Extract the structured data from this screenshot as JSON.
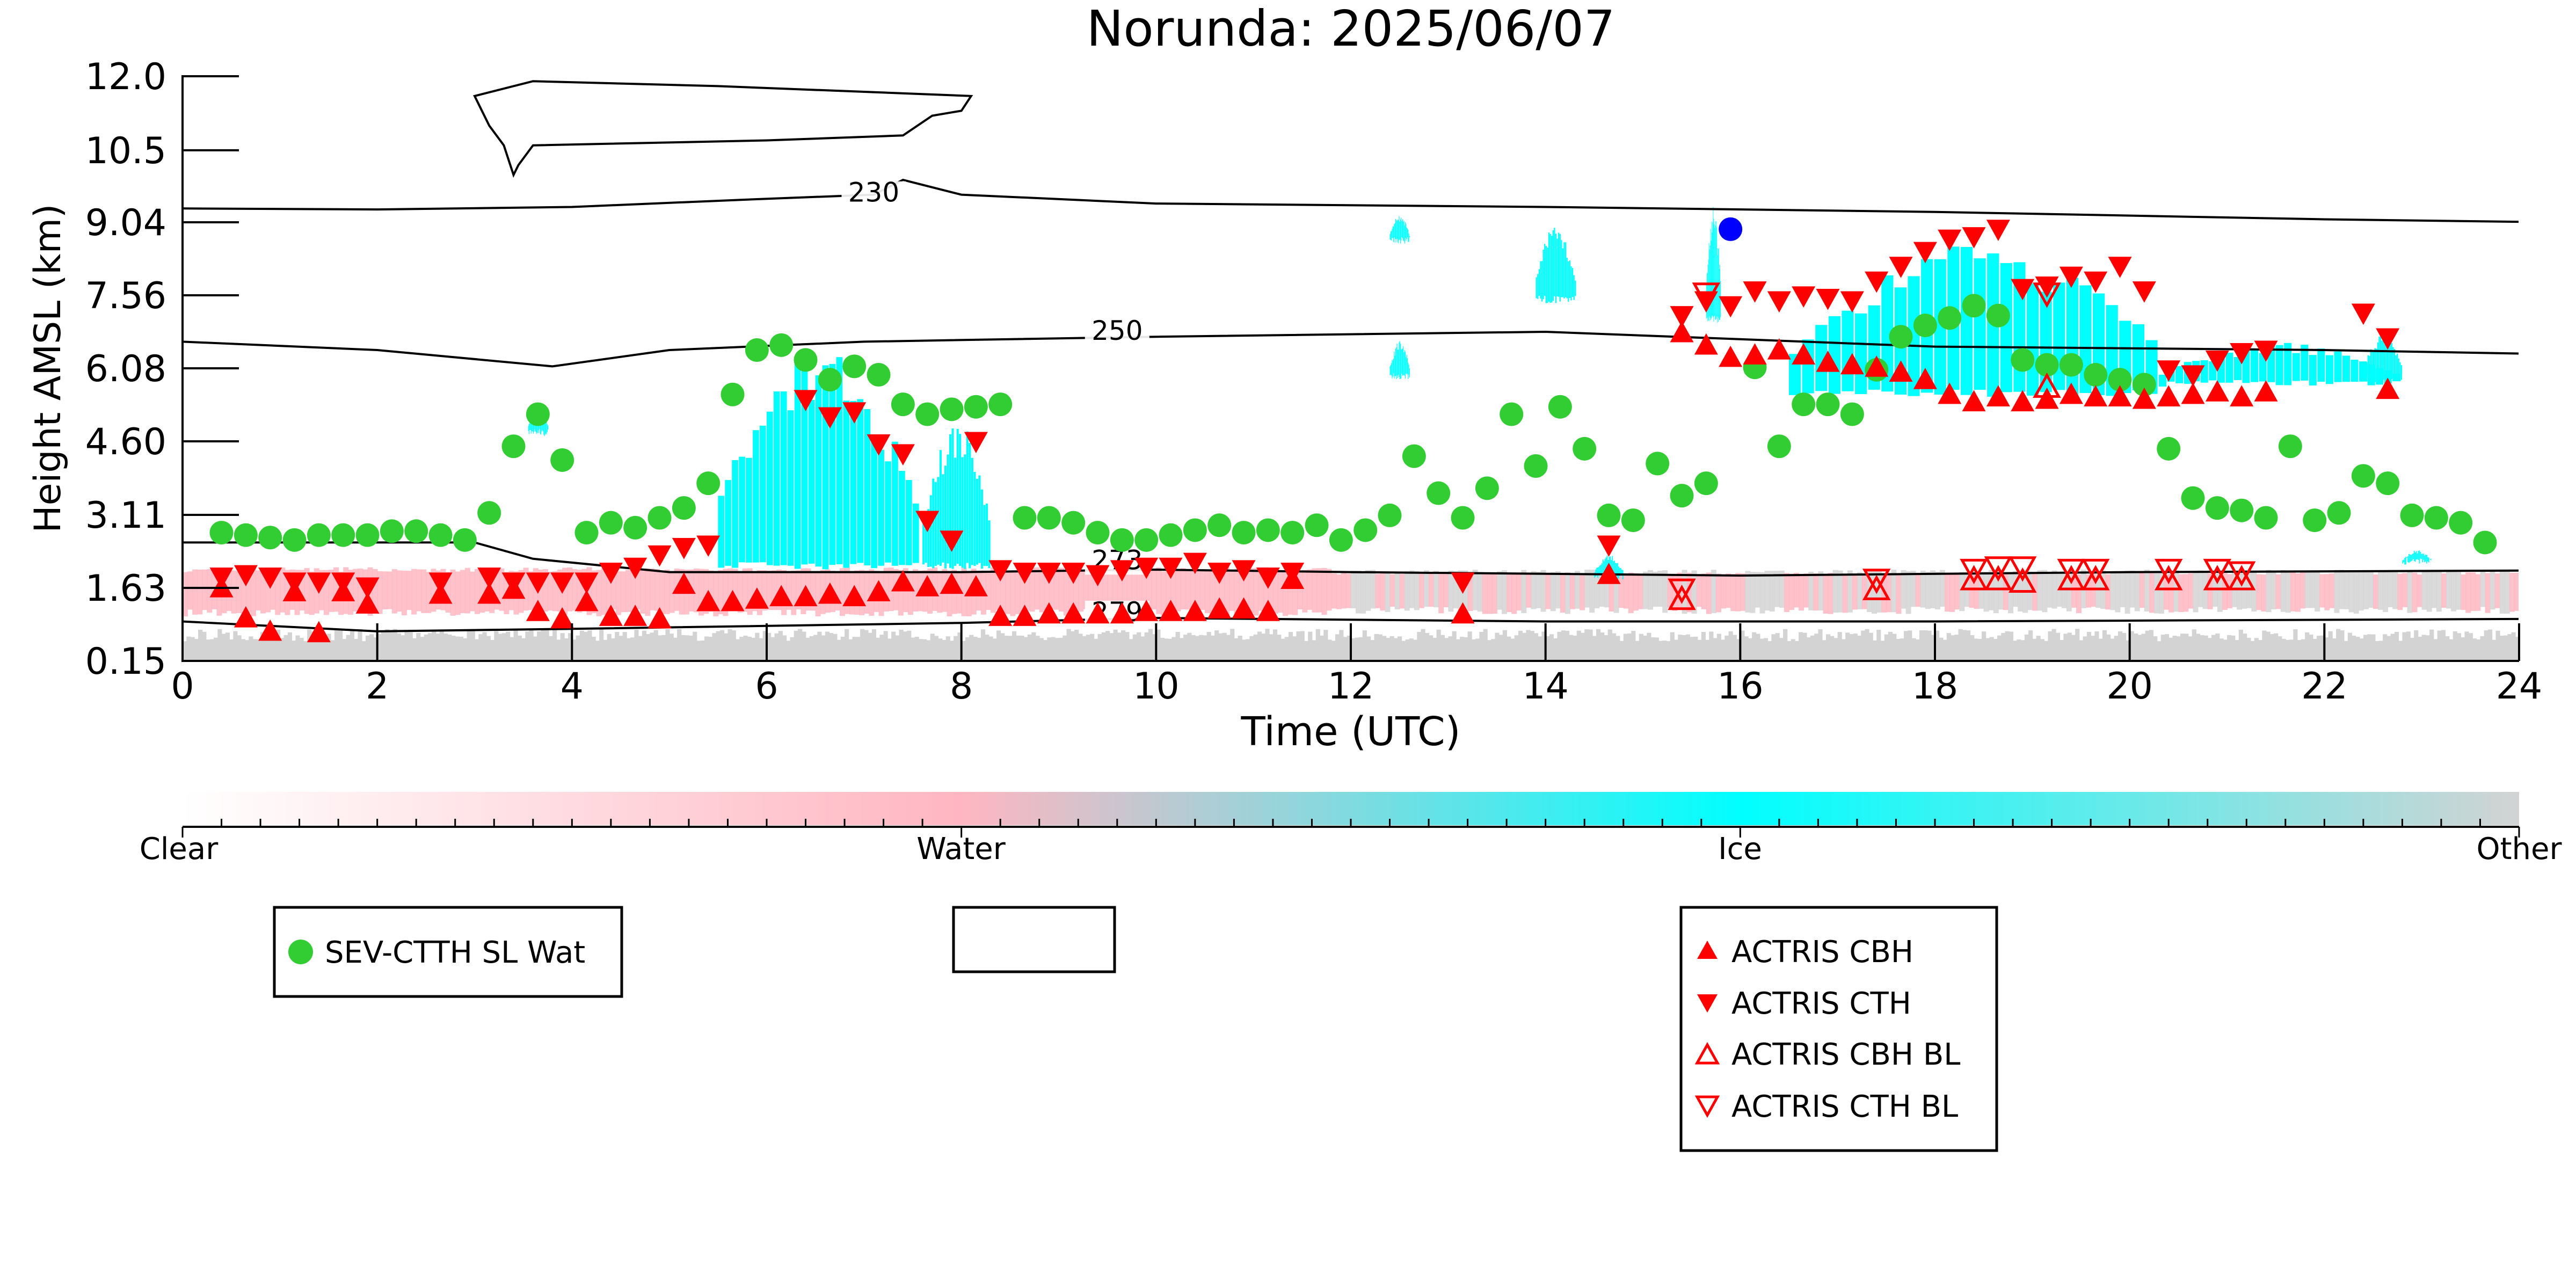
{
  "chart_data": {
    "type": "scatter",
    "title": "Norunda: 2025/06/07",
    "xlabel": "Time (UTC)",
    "ylabel": "Height AMSL (km)",
    "xlim": [
      0,
      24
    ],
    "ylim": [
      0.15,
      12.0
    ],
    "x_ticks": [
      0,
      2,
      4,
      6,
      8,
      10,
      12,
      14,
      16,
      18,
      20,
      22,
      24
    ],
    "y_ticks": [
      "0.15",
      "1.63",
      "3.11",
      "4.60",
      "6.08",
      "7.56",
      "9.04",
      "10.5",
      "12.0"
    ],
    "y_tick_values": [
      0.15,
      1.63,
      3.11,
      4.6,
      6.08,
      7.56,
      9.04,
      10.5,
      12.0
    ],
    "grid": false,
    "colorbar": {
      "labels": [
        "Clear",
        "Water",
        "Ice",
        "Other"
      ],
      "stops": [
        "#ffffff",
        "#ffb6c1",
        "#00ffff",
        "#d3d3d3"
      ]
    },
    "colors": {
      "water": "#ffb6c1",
      "ice": "#00ffff",
      "other": "#d3d3d3",
      "sev": "#32cd32",
      "actris": "#ff0000",
      "extra_point": "#0000ff"
    },
    "isotherms": [
      {
        "label": "230",
        "label_at": [
          7.1,
          9.5
        ],
        "points": [
          [
            0,
            9.32
          ],
          [
            2,
            9.3
          ],
          [
            4,
            9.35
          ],
          [
            5.8,
            9.5
          ],
          [
            7.1,
            9.6
          ],
          [
            7.4,
            9.9
          ],
          [
            8.0,
            9.6
          ],
          [
            10,
            9.42
          ],
          [
            14,
            9.35
          ],
          [
            18,
            9.25
          ],
          [
            22,
            9.1
          ],
          [
            24,
            9.05
          ]
        ]
      },
      {
        "label": "250",
        "label_at": [
          9.6,
          6.7
        ],
        "points": [
          [
            0,
            6.62
          ],
          [
            2,
            6.45
          ],
          [
            3.8,
            6.12
          ],
          [
            5,
            6.45
          ],
          [
            7,
            6.62
          ],
          [
            10,
            6.72
          ],
          [
            14,
            6.82
          ],
          [
            18,
            6.52
          ],
          [
            22,
            6.45
          ],
          [
            24,
            6.38
          ]
        ]
      },
      {
        "label": "273",
        "label_at": [
          9.6,
          2.05
        ],
        "points": [
          [
            0,
            2.55
          ],
          [
            3,
            2.55
          ],
          [
            3.6,
            2.22
          ],
          [
            5,
            1.95
          ],
          [
            8,
            1.95
          ],
          [
            10,
            2.0
          ],
          [
            12,
            1.95
          ],
          [
            16,
            1.88
          ],
          [
            20,
            1.95
          ],
          [
            24,
            1.98
          ]
        ]
      },
      {
        "label": "279",
        "label_at": [
          9.6,
          1.0
        ],
        "points": [
          [
            0,
            0.95
          ],
          [
            2,
            0.75
          ],
          [
            4,
            0.8
          ],
          [
            8,
            0.92
          ],
          [
            10,
            1.02
          ],
          [
            14,
            0.95
          ],
          [
            18,
            0.95
          ],
          [
            24,
            1.0
          ]
        ]
      }
    ],
    "contour_230_closed": [
      [
        3.0,
        11.6
      ],
      [
        3.6,
        11.9
      ],
      [
        5.5,
        11.8
      ],
      [
        8.1,
        11.6
      ],
      [
        8.0,
        11.3
      ],
      [
        7.7,
        11.2
      ],
      [
        7.4,
        10.8
      ],
      [
        6.0,
        10.7
      ],
      [
        3.6,
        10.6
      ],
      [
        3.45,
        10.2
      ],
      [
        3.4,
        10.0
      ],
      [
        3.3,
        10.6
      ],
      [
        3.15,
        11.0
      ],
      [
        3.0,
        11.6
      ]
    ],
    "series": [
      {
        "name": "SEV-CTTH SL Wat",
        "marker": "circle",
        "x": [
          0.4,
          0.65,
          0.9,
          1.15,
          1.4,
          1.65,
          1.9,
          2.15,
          2.4,
          2.65,
          2.9,
          3.15,
          3.4,
          3.65,
          3.9,
          4.15,
          4.4,
          4.65,
          4.9,
          5.15,
          5.4,
          5.65,
          5.9,
          6.15,
          6.4,
          6.65,
          6.9,
          7.15,
          7.4,
          7.65,
          7.9,
          8.15,
          8.4,
          8.65,
          8.9,
          9.15,
          9.4,
          9.65,
          9.9,
          10.15,
          10.4,
          10.65,
          10.9,
          11.15,
          11.4,
          11.65,
          11.9,
          12.15,
          12.4,
          12.65,
          12.9,
          13.15,
          13.4,
          13.65,
          13.9,
          14.15,
          14.4,
          14.65,
          14.9,
          15.15,
          15.4,
          15.65,
          16.15,
          16.4,
          16.65,
          16.9,
          17.15,
          17.4,
          17.65,
          17.9,
          18.15,
          18.4,
          18.65,
          18.9,
          19.15,
          19.4,
          19.65,
          19.9,
          20.15,
          20.4,
          20.65,
          20.9,
          21.15,
          21.4,
          21.65,
          21.9,
          22.15,
          22.4,
          22.65,
          22.9,
          23.15,
          23.4,
          23.65
        ],
        "values": [
          2.75,
          2.7,
          2.65,
          2.6,
          2.7,
          2.7,
          2.7,
          2.78,
          2.78,
          2.7,
          2.6,
          3.15,
          4.5,
          5.15,
          4.22,
          2.75,
          2.95,
          2.85,
          3.05,
          3.25,
          3.75,
          5.55,
          6.45,
          6.55,
          6.25,
          5.85,
          6.12,
          5.95,
          5.35,
          5.15,
          5.25,
          5.3,
          5.35,
          3.05,
          3.05,
          2.95,
          2.75,
          2.6,
          2.6,
          2.7,
          2.8,
          2.9,
          2.75,
          2.8,
          2.75,
          2.9,
          2.6,
          2.8,
          3.1,
          4.3,
          3.55,
          3.05,
          3.65,
          5.15,
          4.1,
          5.3,
          4.45,
          3.1,
          3.0,
          4.15,
          3.5,
          3.75,
          6.1,
          4.5,
          5.35,
          5.35,
          5.15,
          6.05,
          6.72,
          6.95,
          7.1,
          7.35,
          7.15,
          6.25,
          6.15,
          6.15,
          5.95,
          5.85,
          5.75,
          4.45,
          3.45,
          3.25,
          3.2,
          3.05,
          4.5,
          3.0,
          3.15,
          3.9,
          3.75,
          3.1,
          3.05,
          2.95,
          2.55
        ]
      },
      {
        "name": "ACTRIS CBH",
        "marker": "triangle-up",
        "x": [
          0.4,
          0.65,
          0.9,
          1.15,
          1.4,
          1.65,
          1.9,
          2.65,
          3.15,
          3.4,
          3.65,
          3.9,
          4.15,
          4.4,
          4.65,
          4.9,
          5.15,
          5.4,
          5.65,
          5.9,
          6.15,
          6.4,
          6.65,
          6.9,
          7.15,
          7.4,
          7.65,
          7.9,
          8.15,
          8.4,
          8.65,
          8.9,
          9.15,
          9.4,
          9.65,
          9.9,
          10.15,
          10.4,
          10.65,
          10.9,
          11.15,
          11.4,
          13.15,
          14.65,
          15.4,
          15.65,
          15.9,
          16.15,
          16.4,
          16.65,
          16.9,
          17.15,
          17.4,
          17.65,
          17.9,
          18.15,
          18.4,
          18.65,
          18.9,
          19.15,
          19.4,
          19.65,
          19.9,
          20.15,
          20.4,
          20.65,
          20.9,
          21.15,
          21.4,
          22.65
        ],
        "values": [
          1.63,
          1.02,
          0.75,
          1.55,
          0.72,
          1.55,
          1.3,
          1.5,
          1.5,
          1.6,
          1.15,
          1.0,
          1.35,
          1.05,
          1.05,
          1.0,
          1.7,
          1.35,
          1.35,
          1.4,
          1.45,
          1.45,
          1.5,
          1.45,
          1.55,
          1.75,
          1.65,
          1.7,
          1.65,
          1.05,
          1.05,
          1.1,
          1.1,
          1.1,
          1.1,
          1.15,
          1.15,
          1.15,
          1.2,
          1.2,
          1.15,
          1.8,
          1.1,
          1.9,
          6.8,
          6.55,
          6.3,
          6.35,
          6.45,
          6.35,
          6.2,
          6.15,
          6.1,
          6.0,
          5.85,
          5.55,
          5.4,
          5.5,
          5.4,
          5.45,
          5.55,
          5.5,
          5.5,
          5.45,
          5.5,
          5.55,
          5.6,
          5.5,
          5.6,
          5.65
        ]
      },
      {
        "name": "ACTRIS CTH",
        "marker": "triangle-down",
        "x": [
          0.4,
          0.65,
          0.9,
          1.15,
          1.4,
          1.65,
          1.9,
          2.65,
          3.15,
          3.4,
          3.65,
          3.9,
          4.15,
          4.4,
          4.65,
          4.9,
          5.15,
          5.4,
          6.4,
          6.65,
          6.9,
          7.15,
          7.4,
          7.65,
          7.9,
          8.15,
          8.4,
          8.65,
          8.9,
          9.15,
          9.4,
          9.65,
          9.9,
          10.15,
          10.4,
          10.65,
          10.9,
          11.15,
          11.4,
          13.15,
          14.65,
          15.4,
          15.65,
          15.9,
          16.15,
          16.4,
          16.65,
          16.9,
          17.15,
          17.4,
          17.65,
          17.9,
          18.15,
          18.4,
          18.65,
          18.9,
          19.15,
          19.4,
          19.65,
          19.9,
          20.15,
          20.4,
          20.65,
          20.9,
          21.15,
          21.4,
          22.4,
          22.65
        ],
        "values": [
          1.85,
          1.9,
          1.85,
          1.75,
          1.75,
          1.75,
          1.65,
          1.75,
          1.85,
          1.75,
          1.75,
          1.75,
          1.75,
          1.95,
          2.05,
          2.3,
          2.45,
          2.5,
          5.45,
          5.1,
          5.2,
          4.55,
          4.35,
          3.0,
          2.6,
          4.6,
          2.0,
          1.95,
          1.95,
          1.95,
          1.9,
          2.0,
          2.05,
          2.05,
          2.15,
          1.95,
          2.0,
          1.85,
          1.95,
          1.75,
          2.5,
          7.15,
          7.45,
          7.35,
          7.65,
          7.45,
          7.55,
          7.5,
          7.45,
          7.85,
          8.15,
          8.45,
          8.7,
          8.75,
          8.9,
          7.7,
          7.75,
          7.95,
          7.85,
          8.15,
          7.65,
          6.05,
          5.95,
          6.25,
          6.4,
          6.45,
          7.2,
          6.7
        ]
      },
      {
        "name": "ACTRIS CBH BL",
        "marker": "triangle-up-open",
        "x": [
          15.4,
          17.4,
          18.4,
          18.65,
          18.9,
          19.15,
          19.4,
          19.65,
          20.4,
          20.9,
          21.15
        ],
        "values": [
          1.4,
          1.6,
          1.8,
          1.8,
          1.75,
          5.7,
          1.8,
          1.8,
          1.8,
          1.8,
          1.8
        ]
      },
      {
        "name": "ACTRIS CTH BL",
        "marker": "triangle-down-open",
        "x": [
          15.4,
          15.65,
          17.4,
          18.4,
          18.65,
          18.9,
          19.15,
          19.4,
          19.65,
          20.4,
          20.9,
          21.15
        ],
        "values": [
          1.6,
          7.6,
          1.8,
          2.0,
          2.05,
          2.05,
          7.6,
          2.0,
          2.0,
          2.0,
          2.0,
          1.95
        ]
      },
      {
        "name": "",
        "marker": "circle-blue",
        "x": [
          15.9
        ],
        "values": [
          8.9
        ]
      }
    ],
    "legends": [
      {
        "entries": [
          "SEV-CTTH SL Wat"
        ]
      },
      {
        "entries": []
      },
      {
        "entries": [
          "ACTRIS CBH",
          "ACTRIS CTH",
          "ACTRIS CBH BL",
          "ACTRIS CTH BL"
        ]
      }
    ]
  }
}
